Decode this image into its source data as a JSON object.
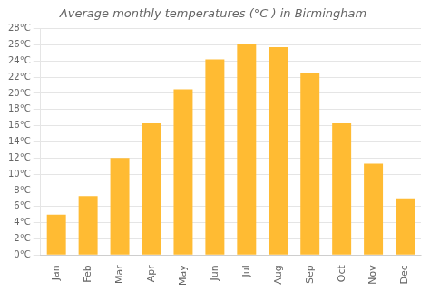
{
  "chart_data": {
    "type": "bar",
    "title": "Average monthly temperatures (°C ) in Birmingham",
    "categories": [
      "Jan",
      "Feb",
      "Mar",
      "Apr",
      "May",
      "Jun",
      "Jul",
      "Aug",
      "Sep",
      "Oct",
      "Nov",
      "Dec"
    ],
    "values": [
      5.0,
      7.3,
      12.0,
      16.3,
      20.5,
      24.2,
      26.1,
      25.7,
      22.5,
      16.3,
      11.3,
      7.0
    ],
    "color": "#FFBB33",
    "ylim": [
      0,
      28
    ],
    "yticks": [
      {
        "value": 0,
        "label": "0°C"
      },
      {
        "value": 2,
        "label": "2°C"
      },
      {
        "value": 4,
        "label": "4°C"
      },
      {
        "value": 6,
        "label": "6°C"
      },
      {
        "value": 8,
        "label": "8°C"
      },
      {
        "value": 10,
        "label": "10°C"
      },
      {
        "value": 12,
        "label": "12°C"
      },
      {
        "value": 14,
        "label": "14°C"
      },
      {
        "value": 16,
        "label": "16°C"
      },
      {
        "value": 18,
        "label": "18°C"
      },
      {
        "value": 20,
        "label": "20°C"
      },
      {
        "value": 22,
        "label": "22°C"
      },
      {
        "value": 24,
        "label": "24°C"
      },
      {
        "value": 26,
        "label": "26°C"
      },
      {
        "value": 28,
        "label": "28°C"
      }
    ],
    "grid": true
  }
}
